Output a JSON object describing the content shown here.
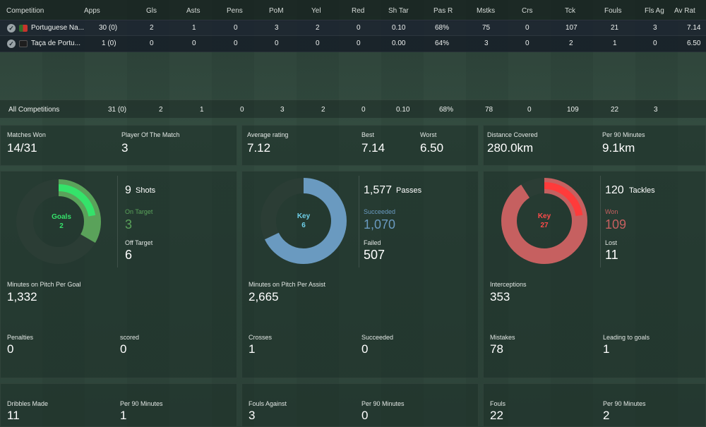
{
  "table": {
    "headers": [
      "Competition",
      "Apps",
      "Gls",
      "Asts",
      "Pens",
      "PoM",
      "Yel",
      "Red",
      "Sh Tar",
      "Pas R",
      "Mstks",
      "Crs",
      "Tck",
      "Fouls",
      "Fls Ag",
      "Av Rat"
    ],
    "rows": [
      {
        "competition": "Portuguese Na...",
        "apps": "30 (0)",
        "gls": "2",
        "asts": "1",
        "pens": "0",
        "pom": "3",
        "yel": "2",
        "red": "0",
        "shtar": "0.10",
        "pasr": "68%",
        "mstks": "75",
        "crs": "0",
        "tck": "107",
        "fouls": "21",
        "flsag": "3",
        "avrat": "7.14"
      },
      {
        "competition": "Taça de Portu...",
        "apps": "1 (0)",
        "gls": "0",
        "asts": "0",
        "pens": "0",
        "pom": "0",
        "yel": "0",
        "red": "0",
        "shtar": "0.00",
        "pasr": "64%",
        "mstks": "3",
        "crs": "0",
        "tck": "2",
        "fouls": "1",
        "flsag": "0",
        "avrat": "6.50"
      }
    ],
    "totals": {
      "label": "All Competitions",
      "apps": "31 (0)",
      "gls": "2",
      "asts": "1",
      "pens": "0",
      "pom": "3",
      "yel": "2",
      "red": "0",
      "shtar": "0.10",
      "pasr": "68%",
      "mstks": "78",
      "crs": "0",
      "tck": "109",
      "fouls": "22",
      "flsag": "3"
    }
  },
  "summary": {
    "matches_won_label": "Matches Won",
    "matches_won": "14/31",
    "potm_label": "Player Of The Match",
    "potm": "3",
    "avg_rating_label": "Average rating",
    "avg_rating": "7.12",
    "best_label": "Best",
    "best": "7.14",
    "worst_label": "Worst",
    "worst": "6.50",
    "distance_label": "Distance Covered",
    "distance": "280.0km",
    "per90_label": "Per 90 Minutes",
    "per90": "9.1km"
  },
  "shooting": {
    "donut_label": "Goals",
    "donut_value": "2",
    "on_target_fraction": 0.333,
    "goals_fraction": 0.222,
    "shots": "9",
    "shots_label": "Shots",
    "on_target_label": "On Target",
    "on_target": "3",
    "off_target_label": "Off Target",
    "off_target": "6",
    "per_goal_label": "Minutes on Pitch Per Goal",
    "per_goal": "1,332",
    "penalties_label": "Penalties",
    "penalties": "0",
    "scored_label": "scored",
    "scored": "0"
  },
  "passing": {
    "donut_label": "Key",
    "donut_value": "6",
    "succeeded_fraction": 0.678,
    "passes": "1,577",
    "passes_label": "Passes",
    "succeeded_label": "Succeeded",
    "succeeded": "1,070",
    "failed_label": "Failed",
    "failed": "507",
    "per_assist_label": "Minutes on Pitch Per Assist",
    "per_assist": "2,665",
    "crosses_label": "Crosses",
    "crosses": "1",
    "crosses_succeeded_label": "Succeeded",
    "crosses_succeeded": "0"
  },
  "tackling": {
    "donut_label": "Key",
    "donut_value": "27",
    "won_fraction": 0.908,
    "key_fraction": 0.225,
    "tackles": "120",
    "tackles_label": "Tackles",
    "won_label": "Won",
    "won": "109",
    "lost_label": "Lost",
    "lost": "11",
    "interceptions_label": "Interceptions",
    "interceptions": "353",
    "mistakes_label": "Mistakes",
    "mistakes": "78",
    "leading_label": "Leading to goals",
    "leading": "1"
  },
  "bottom": {
    "dribbles_label": "Dribbles Made",
    "dribbles": "11",
    "dribbles_per90_label": "Per 90 Minutes",
    "dribbles_per90": "1",
    "fouls_against_label": "Fouls Against",
    "fouls_against": "3",
    "fouls_against_per90_label": "Per 90 Minutes",
    "fouls_against_per90": "0",
    "fouls_label": "Fouls",
    "fouls": "22",
    "fouls_per90_label": "Per 90 Minutes",
    "fouls_per90": "2"
  },
  "colors": {
    "green": "#35e26a",
    "green_dim": "#5aa25a",
    "blue": "#6a9ac0",
    "red": "#c66060",
    "red_bright": "#ff3b3b",
    "track": "#2b3d35"
  }
}
